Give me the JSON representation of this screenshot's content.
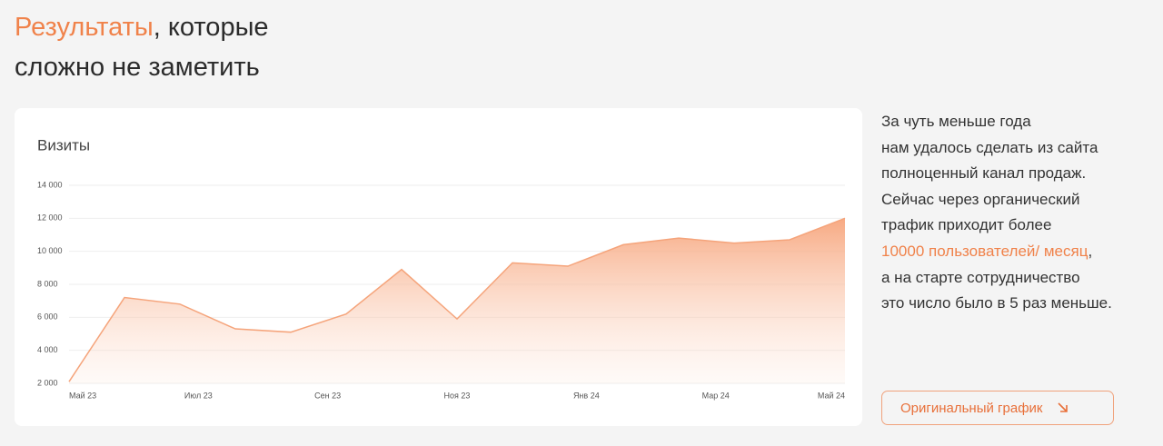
{
  "header": {
    "title_accent": "Результаты",
    "title_rest": ", которые",
    "title_line2": "сложно не заметить"
  },
  "chart_data": {
    "type": "area",
    "title": "Визиты",
    "categories": [
      null,
      null,
      null,
      null,
      null,
      null,
      null,
      null,
      null,
      null,
      null,
      null,
      null,
      null,
      null
    ],
    "x_labels": [
      "Май 23",
      "Июл 23",
      "Сен 23",
      "Ноя 23",
      "Янв 24",
      "Мар 24",
      "Май 24"
    ],
    "series": [
      {
        "name": "Визиты",
        "color": "#f5a47b",
        "values": [
          2100,
          7200,
          6800,
          5300,
          5100,
          6200,
          8900,
          5900,
          9300,
          9100,
          10400,
          10800,
          10500,
          10700,
          12000
        ]
      }
    ],
    "ylim": [
      2000,
      14000
    ],
    "yticks": [
      {
        "value": 2000,
        "label": "2 000"
      },
      {
        "value": 4000,
        "label": "4 000"
      },
      {
        "value": 6000,
        "label": "6 000"
      },
      {
        "value": 8000,
        "label": "8 000"
      },
      {
        "value": 10000,
        "label": "10 000"
      },
      {
        "value": 12000,
        "label": "12 000"
      },
      {
        "value": 14000,
        "label": "14 000"
      }
    ],
    "grid": true
  },
  "description": {
    "lines": [
      "За чуть меньше года",
      "нам удалось сделать из сайта",
      "полноценный канал продаж.",
      "Сейчас через органический",
      "трафик приходит более"
    ],
    "highlight": "10000 пользователей/ месяц",
    "highlight_after": ",",
    "lines_after": [
      "а на старте сотрудничество",
      "это число было в 5 раз меньше."
    ]
  },
  "button": {
    "label": "Оригинальный график"
  }
}
